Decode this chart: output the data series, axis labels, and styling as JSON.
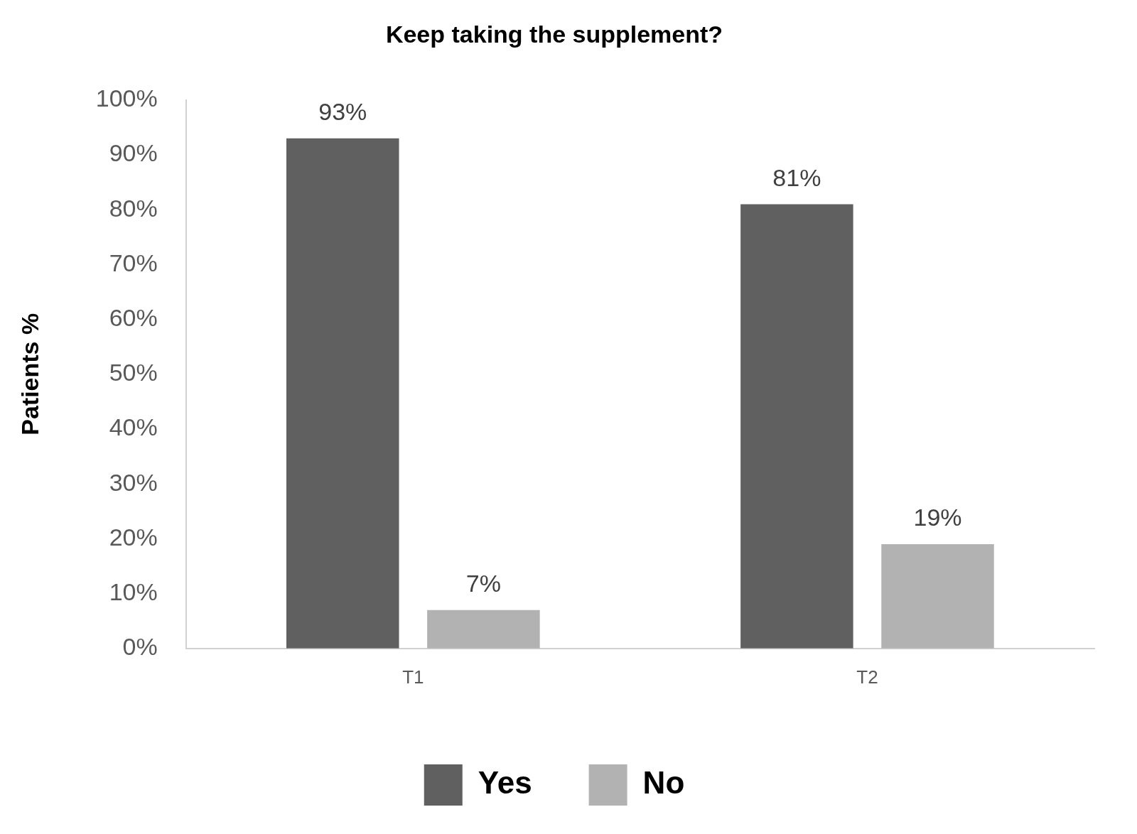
{
  "chart_data": {
    "type": "bar",
    "title": "Keep taking the supplement?",
    "ylabel": "Patients %",
    "categories": [
      "T1",
      "T2"
    ],
    "series": [
      {
        "name": "Yes",
        "color": "#606060",
        "values": [
          93,
          81
        ],
        "value_labels": [
          "93%",
          "81%"
        ]
      },
      {
        "name": "No",
        "color": "#b2b2b2",
        "values": [
          7,
          19
        ],
        "value_labels": [
          "7%",
          "19%"
        ]
      }
    ],
    "ylim": [
      0,
      100
    ],
    "yticks": [
      {
        "value": 0,
        "label": "0%"
      },
      {
        "value": 10,
        "label": "10%"
      },
      {
        "value": 20,
        "label": "20%"
      },
      {
        "value": 30,
        "label": "30%"
      },
      {
        "value": 40,
        "label": "40%"
      },
      {
        "value": 50,
        "label": "50%"
      },
      {
        "value": 60,
        "label": "60%"
      },
      {
        "value": 70,
        "label": "70%"
      },
      {
        "value": 80,
        "label": "80%"
      },
      {
        "value": 90,
        "label": "90%"
      },
      {
        "value": 100,
        "label": "100%"
      }
    ],
    "grid": false,
    "legend": "bottom"
  }
}
